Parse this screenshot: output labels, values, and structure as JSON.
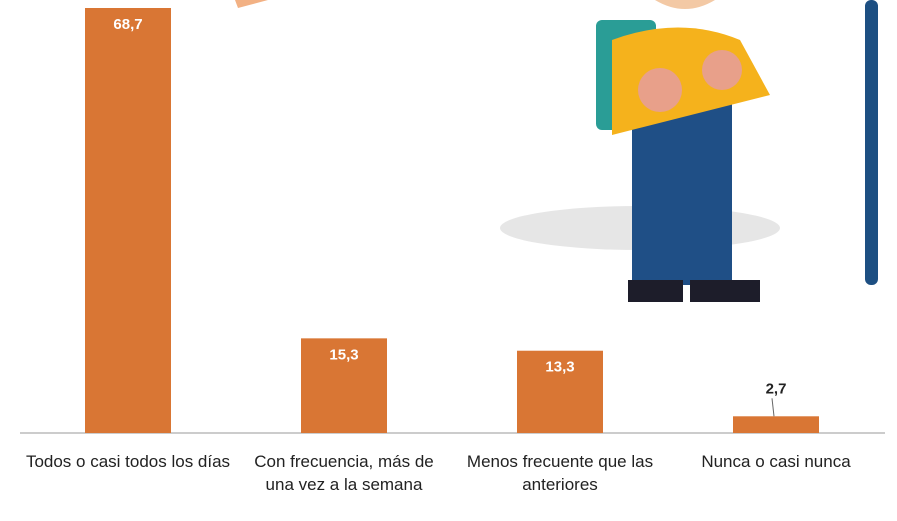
{
  "chart_data": {
    "type": "bar",
    "categories": [
      "Todos o casi todos los días",
      "Con frecuencia, más de una vez a la semana",
      "Menos frecuente que las anteriores",
      "Nunca o casi nunca"
    ],
    "values": [
      68.7,
      15.3,
      13.3,
      2.7
    ],
    "value_labels": [
      "68,7",
      "15,3",
      "13,3",
      "2,7"
    ],
    "color": "#d97634"
  }
}
